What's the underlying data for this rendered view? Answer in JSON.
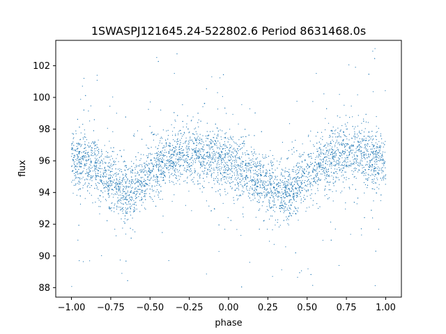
{
  "chart_data": {
    "type": "scatter",
    "title": "1SWASPJ121645.24-522802.6 Period 8631468.0s",
    "xlabel": "phase",
    "ylabel": "flux",
    "xlim": [
      -1.1,
      1.1
    ],
    "ylim": [
      87.4,
      103.6
    ],
    "xticks": [
      -1.0,
      -0.75,
      -0.5,
      -0.25,
      0.0,
      0.25,
      0.5,
      0.75,
      1.0
    ],
    "xtick_labels": [
      "−1.00",
      "−0.75",
      "−0.50",
      "−0.25",
      "0.00",
      "0.25",
      "0.50",
      "0.75",
      "1.00"
    ],
    "yticks": [
      88,
      90,
      92,
      94,
      96,
      98,
      100,
      102
    ],
    "ytick_labels": [
      "88",
      "90",
      "92",
      "94",
      "96",
      "98",
      "100",
      "102"
    ],
    "grid": false,
    "marker_color": "#1f77b4",
    "series": [
      {
        "x": [
          -1.0,
          -0.95,
          -0.9,
          -0.85,
          -0.8,
          -0.75,
          -0.7,
          -0.65,
          -0.6,
          -0.55,
          -0.5,
          -0.45,
          -0.4,
          -0.35,
          -0.3,
          -0.25,
          -0.2,
          -0.15,
          -0.1,
          -0.05,
          0.0,
          0.05,
          0.1,
          0.15,
          0.2,
          0.25,
          0.3,
          0.35,
          0.4,
          0.45,
          0.5,
          0.55,
          0.6,
          0.65,
          0.7,
          0.75,
          0.8,
          0.85,
          0.9,
          0.95,
          1.0
        ],
        "y": [
          96.0,
          96.0,
          95.9,
          95.7,
          95.2,
          94.8,
          94.3,
          94.0,
          94.3,
          94.7,
          95.2,
          95.7,
          96.0,
          96.2,
          96.4,
          96.5,
          96.4,
          96.3,
          96.1,
          96.0,
          95.9,
          95.7,
          95.4,
          95.0,
          94.7,
          94.5,
          94.2,
          94.0,
          94.2,
          94.5,
          95.0,
          95.4,
          95.8,
          96.1,
          96.3,
          96.5,
          96.6,
          96.5,
          96.3,
          96.1,
          96.0
        ]
      }
    ]
  }
}
